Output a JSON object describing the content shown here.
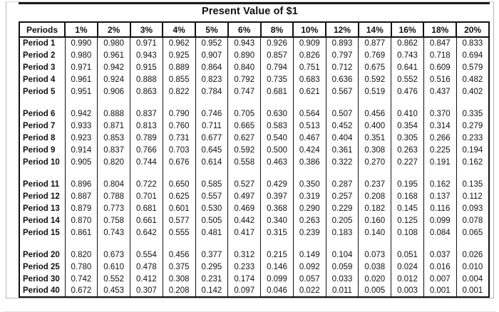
{
  "title": "Present Value of $1",
  "colors": {
    "table_border": "#111111",
    "page_frame": "#b5b5b5",
    "text": "#111111",
    "background": "#ffffff"
  },
  "table": {
    "columns": [
      "Periods",
      "1%",
      "2%",
      "3%",
      "4%",
      "5%",
      "6%",
      "8%",
      "10%",
      "12%",
      "14%",
      "16%",
      "18%",
      "20%"
    ],
    "groups": [
      {
        "rows": [
          {
            "label": "Period 1",
            "values": [
              "0.990",
              "0.980",
              "0.971",
              "0.962",
              "0.952",
              "0.943",
              "0.926",
              "0.909",
              "0.893",
              "0.877",
              "0.862",
              "0.847",
              "0.833"
            ]
          },
          {
            "label": "Period 2",
            "values": [
              "0.980",
              "0.961",
              "0.943",
              "0.925",
              "0.907",
              "0.890",
              "0.857",
              "0.826",
              "0.797",
              "0.769",
              "0.743",
              "0.718",
              "0.694"
            ]
          },
          {
            "label": "Period 3",
            "values": [
              "0.971",
              "0.942",
              "0.915",
              "0.889",
              "0.864",
              "0.840",
              "0.794",
              "0.751",
              "0.712",
              "0.675",
              "0.641",
              "0.609",
              "0.579"
            ]
          },
          {
            "label": "Period 4",
            "values": [
              "0.961",
              "0.924",
              "0.888",
              "0.855",
              "0.823",
              "0.792",
              "0.735",
              "0.683",
              "0.636",
              "0.592",
              "0.552",
              "0.516",
              "0.482"
            ]
          },
          {
            "label": "Period 5",
            "values": [
              "0.951",
              "0.906",
              "0.863",
              "0.822",
              "0.784",
              "0.747",
              "0.681",
              "0.621",
              "0.567",
              "0.519",
              "0.476",
              "0.437",
              "0.402"
            ]
          }
        ]
      },
      {
        "rows": [
          {
            "label": "Period 6",
            "values": [
              "0.942",
              "0.888",
              "0.837",
              "0.790",
              "0.746",
              "0.705",
              "0.630",
              "0.564",
              "0.507",
              "0.456",
              "0.410",
              "0.370",
              "0.335"
            ]
          },
          {
            "label": "Period 7",
            "values": [
              "0.933",
              "0.871",
              "0.813",
              "0.760",
              "0.711",
              "0.665",
              "0.583",
              "0.513",
              "0.452",
              "0.400",
              "0.354",
              "0.314",
              "0.279"
            ]
          },
          {
            "label": "Period 8",
            "values": [
              "0.923",
              "0.853",
              "0.789",
              "0.731",
              "0.677",
              "0.627",
              "0.540",
              "0.467",
              "0.404",
              "0.351",
              "0.305",
              "0.266",
              "0.233"
            ]
          },
          {
            "label": "Period 9",
            "values": [
              "0.914",
              "0.837",
              "0.766",
              "0.703",
              "0.645",
              "0.592",
              "0.500",
              "0.424",
              "0.361",
              "0.308",
              "0.263",
              "0.225",
              "0.194"
            ]
          },
          {
            "label": "Period 10",
            "values": [
              "0.905",
              "0.820",
              "0.744",
              "0.676",
              "0.614",
              "0.558",
              "0.463",
              "0.386",
              "0.322",
              "0.270",
              "0.227",
              "0.191",
              "0.162"
            ]
          }
        ]
      },
      {
        "rows": [
          {
            "label": "Period 11",
            "values": [
              "0.896",
              "0.804",
              "0.722",
              "0.650",
              "0.585",
              "0.527",
              "0.429",
              "0.350",
              "0.287",
              "0.237",
              "0.195",
              "0.162",
              "0.135"
            ]
          },
          {
            "label": "Period 12",
            "values": [
              "0.887",
              "0.788",
              "0.701",
              "0.625",
              "0.557",
              "0.497",
              "0.397",
              "0.319",
              "0.257",
              "0.208",
              "0.168",
              "0.137",
              "0.112"
            ]
          },
          {
            "label": "Period 13",
            "values": [
              "0.879",
              "0.773",
              "0.681",
              "0.601",
              "0.530",
              "0.469",
              "0.368",
              "0.290",
              "0.229",
              "0.182",
              "0.145",
              "0.116",
              "0.093"
            ]
          },
          {
            "label": "Period 14",
            "values": [
              "0.870",
              "0.758",
              "0.661",
              "0.577",
              "0.505",
              "0.442",
              "0.340",
              "0.263",
              "0.205",
              "0.160",
              "0.125",
              "0.099",
              "0.078"
            ]
          },
          {
            "label": "Period 15",
            "values": [
              "0.861",
              "0.743",
              "0.642",
              "0.555",
              "0.481",
              "0.417",
              "0.315",
              "0.239",
              "0.183",
              "0.140",
              "0.108",
              "0.084",
              "0.065"
            ]
          }
        ]
      },
      {
        "rows": [
          {
            "label": "Period 20",
            "values": [
              "0.820",
              "0.673",
              "0.554",
              "0.456",
              "0.377",
              "0.312",
              "0.215",
              "0.149",
              "0.104",
              "0.073",
              "0.051",
              "0.037",
              "0.026"
            ]
          },
          {
            "label": "Period 25",
            "values": [
              "0.780",
              "0.610",
              "0.478",
              "0.375",
              "0.295",
              "0.233",
              "0.146",
              "0.092",
              "0.059",
              "0.038",
              "0.024",
              "0.016",
              "0.010"
            ]
          },
          {
            "label": "Period 30",
            "values": [
              "0.742",
              "0.552",
              "0.412",
              "0.308",
              "0.231",
              "0.174",
              "0.099",
              "0.057",
              "0.033",
              "0.020",
              "0.012",
              "0.007",
              "0.004"
            ]
          },
          {
            "label": "Period 40",
            "values": [
              "0.672",
              "0.453",
              "0.307",
              "0.208",
              "0.142",
              "0.097",
              "0.046",
              "0.022",
              "0.011",
              "0.005",
              "0.003",
              "0.001",
              "0.001"
            ]
          }
        ]
      }
    ]
  }
}
